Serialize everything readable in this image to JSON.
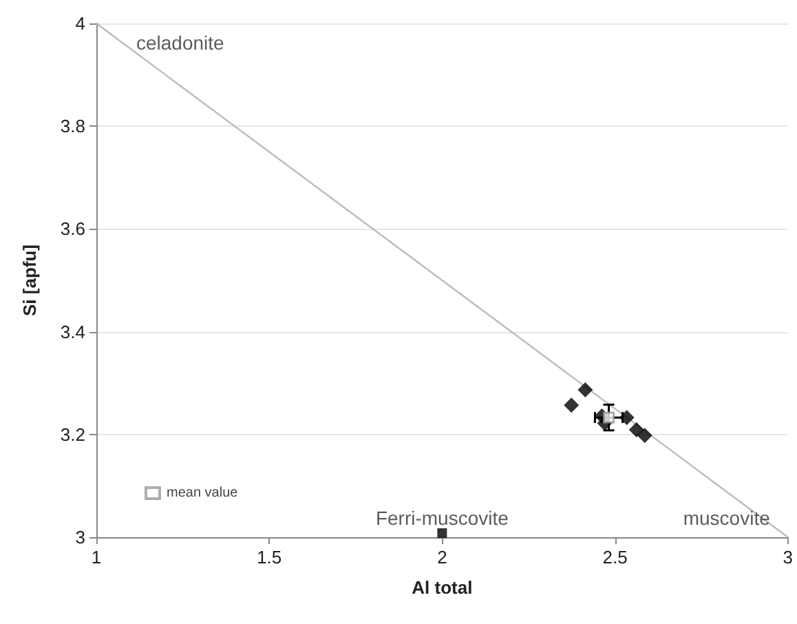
{
  "chart_data": {
    "type": "scatter",
    "xlabel": "Al total",
    "ylabel": "Si [apfu]",
    "xlim": [
      1,
      3
    ],
    "xticks": [
      1,
      1.5,
      2,
      2.5,
      3
    ],
    "ylim": [
      3,
      4
    ],
    "yticks": [
      3,
      3.2,
      3.4,
      3.6,
      3.8,
      4
    ],
    "grid": "y",
    "legend": "bottom left",
    "series": [
      {
        "type": "line",
        "color": "#bbbbbb",
        "x": [
          1,
          3
        ],
        "values": [
          4,
          3
        ],
        "marker": "none"
      },
      {
        "color": "#000000",
        "marker": "diamond",
        "x": [
          2.414,
          2.374,
          2.462,
          2.534,
          2.562,
          2.586,
          2.47
        ],
        "values": [
          3.287,
          3.257,
          3.236,
          3.233,
          3.209,
          3.198,
          3.222
        ]
      },
      {
        "color": "#000000",
        "marker": "square",
        "x": [
          2.0
        ],
        "values": [
          3.008
        ]
      },
      {
        "name": "mean value",
        "color": "#999999",
        "marker": "square",
        "x": [
          2.482
        ],
        "values": [
          3.233
        ],
        "errors": [
          0.025
        ],
        "xerrors": [
          0.04
        ]
      }
    ],
    "annotations": [
      {
        "text": "celadonite",
        "x": 1,
        "y": 4
      },
      {
        "text": "Ferri-muscovite",
        "x": 2,
        "y": 3
      },
      {
        "text": "muscovite",
        "x": 3,
        "y": 3
      }
    ]
  }
}
